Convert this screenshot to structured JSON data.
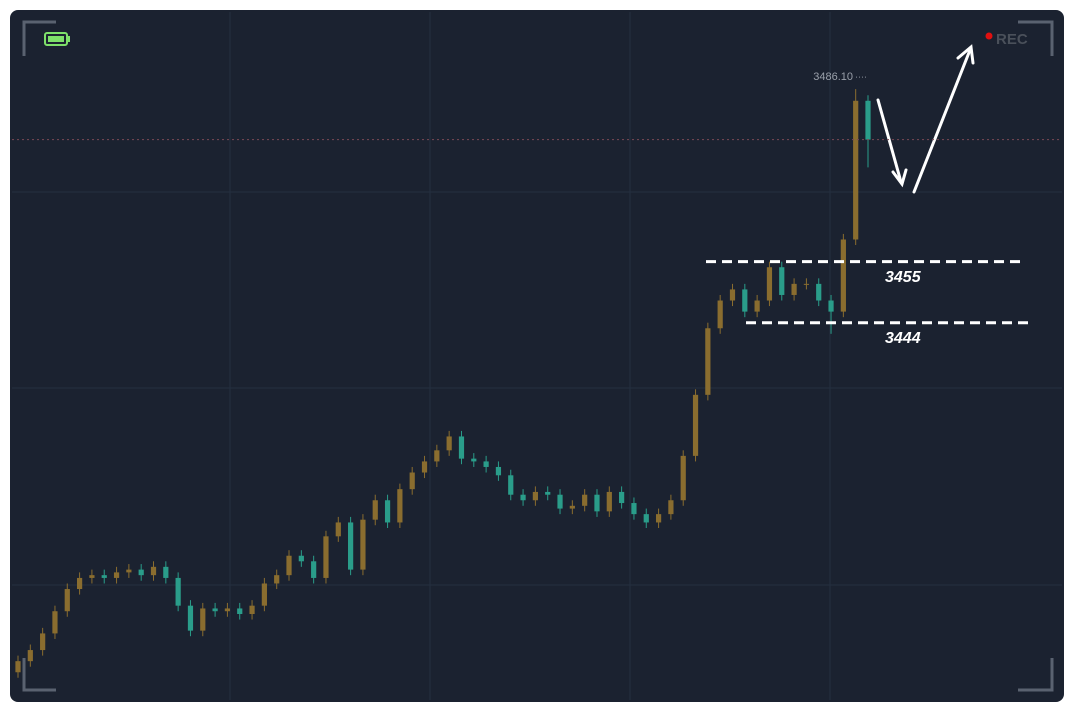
{
  "chart_data": {
    "type": "candlestick",
    "recording_label": "REC",
    "open": [
      3381,
      3383,
      3385,
      3388,
      3392,
      3396,
      3398,
      3398.5,
      3398,
      3399,
      3399.5,
      3398.5,
      3400,
      3398,
      3393,
      3388.5,
      3392.5,
      3392,
      3392.5,
      3391.5,
      3393,
      3397,
      3398.5,
      3402,
      3401,
      3398,
      3405.5,
      3408,
      3399.5,
      3408.5,
      3412,
      3408,
      3414,
      3417,
      3419,
      3421,
      3423.5,
      3419.5,
      3419,
      3418,
      3416.5,
      3413,
      3412,
      3413.5,
      3413,
      3410.5,
      3411,
      3413,
      3410,
      3413.5,
      3411.5,
      3409.5,
      3408,
      3409.5,
      3412,
      3420,
      3431,
      3443,
      3448,
      3450,
      3446,
      3448,
      3454,
      3449,
      3451,
      3451,
      3448,
      3446,
      3459,
      3484
    ],
    "high": [
      3384,
      3386,
      3389,
      3393,
      3397,
      3399,
      3399.5,
      3399.5,
      3400,
      3400.5,
      3400.5,
      3401,
      3401,
      3399,
      3394,
      3393.5,
      3393.5,
      3393.5,
      3393.5,
      3394,
      3398,
      3399.5,
      3403,
      3403,
      3402,
      3406.5,
      3409,
      3409,
      3409.5,
      3413,
      3413,
      3415,
      3418,
      3420,
      3422,
      3424.5,
      3424.5,
      3420.5,
      3420,
      3419,
      3417.5,
      3414,
      3414.5,
      3414.5,
      3414,
      3412,
      3414,
      3414,
      3414.5,
      3414.5,
      3412.5,
      3410.5,
      3410.5,
      3413,
      3421,
      3432,
      3444,
      3449,
      3451,
      3451,
      3449,
      3455,
      3455,
      3452,
      3452,
      3452,
      3449,
      3460,
      3486.1,
      3485
    ],
    "low": [
      3380,
      3382,
      3384,
      3387,
      3391,
      3395,
      3397,
      3397,
      3397,
      3398,
      3397.5,
      3397.5,
      3397,
      3392,
      3387.5,
      3387.5,
      3391,
      3391,
      3390.5,
      3390.5,
      3392,
      3396,
      3397.5,
      3400,
      3397,
      3397,
      3404.5,
      3398.5,
      3398.5,
      3407.5,
      3407,
      3407,
      3413,
      3416,
      3418,
      3420,
      3418.5,
      3418,
      3417,
      3415.5,
      3412,
      3411,
      3411,
      3412,
      3409.5,
      3409.5,
      3410,
      3409,
      3409,
      3410.5,
      3408.5,
      3407,
      3407,
      3408.5,
      3411,
      3419,
      3430,
      3442,
      3447,
      3445,
      3445,
      3447,
      3448,
      3448,
      3450,
      3447,
      3442,
      3445,
      3458,
      3472
    ],
    "close": [
      3383,
      3385,
      3388,
      3392,
      3396,
      3398,
      3398.5,
      3398,
      3399,
      3399.5,
      3398.5,
      3400,
      3398,
      3393,
      3388.5,
      3392.5,
      3392,
      3392.5,
      3391.5,
      3393,
      3397,
      3398.5,
      3402,
      3401,
      3398,
      3405.5,
      3408,
      3399.5,
      3408.5,
      3412,
      3408,
      3414,
      3417,
      3419,
      3421,
      3423.5,
      3419.5,
      3419,
      3418,
      3416.5,
      3413,
      3412,
      3413.5,
      3413,
      3410.5,
      3411,
      3413,
      3410,
      3413.5,
      3411.5,
      3409.5,
      3408,
      3409.5,
      3412,
      3420,
      3431,
      3443,
      3448,
      3450,
      3446,
      3448,
      3454,
      3449,
      3451,
      3451,
      3448,
      3446,
      3459,
      3484,
      3477
    ],
    "up_color": "#8a6d2f",
    "down_color": "#2a9d8a",
    "ylim": [
      3376,
      3500
    ],
    "high_marker": {
      "value": 3486.1,
      "label": "3486.10"
    },
    "levels": [
      3455,
      3444
    ]
  }
}
